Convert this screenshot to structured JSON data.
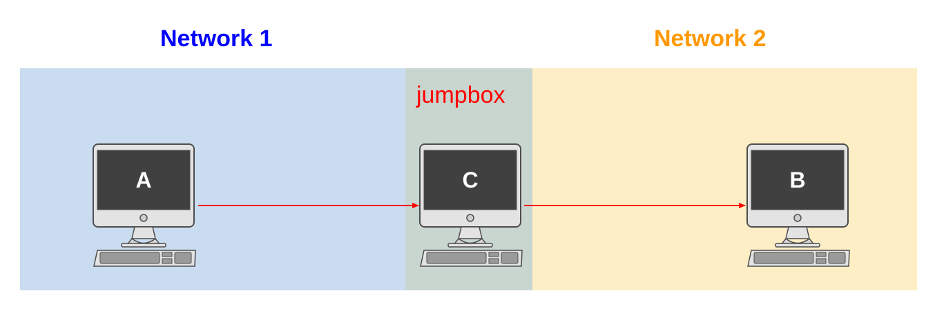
{
  "networks": [
    {
      "label": "Network 1",
      "color": "#0000ff",
      "background": "#c9dcf0"
    },
    {
      "label": "Network 2",
      "color": "#ff9900",
      "background": "#fdeec5"
    }
  ],
  "jumpbox": {
    "label": "jumpbox",
    "color": "#ff0000",
    "background": "#c9d5cf"
  },
  "computers": [
    {
      "letter": "A",
      "zone": "Network 1",
      "icon": "desktop-computer-icon"
    },
    {
      "letter": "C",
      "zone": "jumpbox",
      "icon": "desktop-computer-icon"
    },
    {
      "letter": "B",
      "zone": "Network 2",
      "icon": "desktop-computer-icon"
    }
  ],
  "connections": [
    {
      "from": "A",
      "to": "C",
      "color": "#ff0000"
    },
    {
      "from": "C",
      "to": "B",
      "color": "#ff0000"
    }
  ]
}
